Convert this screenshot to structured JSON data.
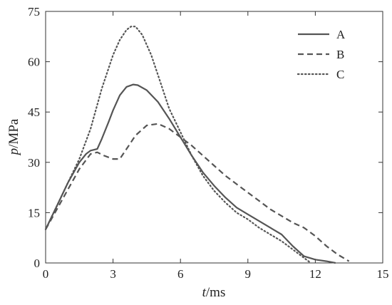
{
  "chart_data": {
    "type": "line",
    "xlabel_italic": "t",
    "xlabel_unit": "/ms",
    "ylabel_italic": "p",
    "ylabel_unit": "/MPa",
    "xlim": [
      0,
      15
    ],
    "ylim": [
      0,
      75
    ],
    "xticks": [
      0,
      3,
      6,
      9,
      12,
      15
    ],
    "yticks": [
      0,
      15,
      30,
      45,
      60,
      75
    ],
    "grid": false,
    "legend_position": "top-right",
    "series": [
      {
        "name": "A",
        "style": "solid",
        "color": "#555555",
        "x": [
          0,
          0.5,
          1.0,
          1.5,
          1.8,
          2.0,
          2.3,
          2.5,
          2.8,
          3.0,
          3.3,
          3.6,
          3.9,
          4.1,
          4.5,
          5.0,
          5.5,
          6.0,
          6.5,
          7.0,
          7.5,
          8.0,
          8.5,
          9.0,
          9.5,
          10.0,
          10.5,
          11.0,
          11.5,
          12.0,
          12.5,
          12.9
        ],
        "y": [
          10,
          17,
          24,
          30,
          32.5,
          33.5,
          34,
          37,
          42,
          45.5,
          50,
          52.5,
          53.2,
          53,
          51.5,
          48,
          43,
          37.5,
          32,
          27,
          23,
          19.5,
          16.5,
          14.5,
          12.5,
          10.5,
          8.5,
          5,
          2,
          1,
          0.5,
          0
        ]
      },
      {
        "name": "B",
        "style": "dashed",
        "color": "#555555",
        "x": [
          0,
          0.5,
          1.0,
          1.5,
          2.0,
          2.3,
          2.6,
          3.0,
          3.3,
          3.7,
          4.0,
          4.5,
          5.0,
          5.5,
          6.0,
          6.5,
          7.0,
          7.5,
          8.0,
          8.5,
          9.0,
          9.5,
          10.0,
          10.5,
          11.0,
          11.5,
          12.0,
          12.5,
          13.0,
          13.5
        ],
        "y": [
          10,
          16,
          22,
          28,
          32.5,
          33,
          32,
          31,
          31,
          35,
          38,
          41,
          41.5,
          40,
          37.5,
          35,
          32,
          29,
          26,
          23.5,
          21,
          18.5,
          16,
          14,
          12,
          10.5,
          8,
          5,
          2.5,
          0.5
        ]
      },
      {
        "name": "C",
        "style": "dotted",
        "color": "#555555",
        "x": [
          0,
          0.5,
          1.0,
          1.5,
          2.0,
          2.5,
          3.0,
          3.3,
          3.6,
          3.8,
          4.0,
          4.3,
          4.7,
          5.0,
          5.5,
          6.0,
          6.5,
          7.0,
          7.5,
          8.0,
          8.5,
          9.0,
          9.5,
          10.0,
          10.5,
          11.0,
          11.5,
          11.8
        ],
        "y": [
          10,
          17,
          24,
          31,
          40,
          52,
          62,
          66.5,
          69.5,
          70.5,
          70.5,
          68,
          62,
          56,
          46,
          39,
          32,
          26,
          21.5,
          18,
          15,
          13,
          10.5,
          8.5,
          6.5,
          4,
          1.5,
          0
        ]
      }
    ]
  }
}
